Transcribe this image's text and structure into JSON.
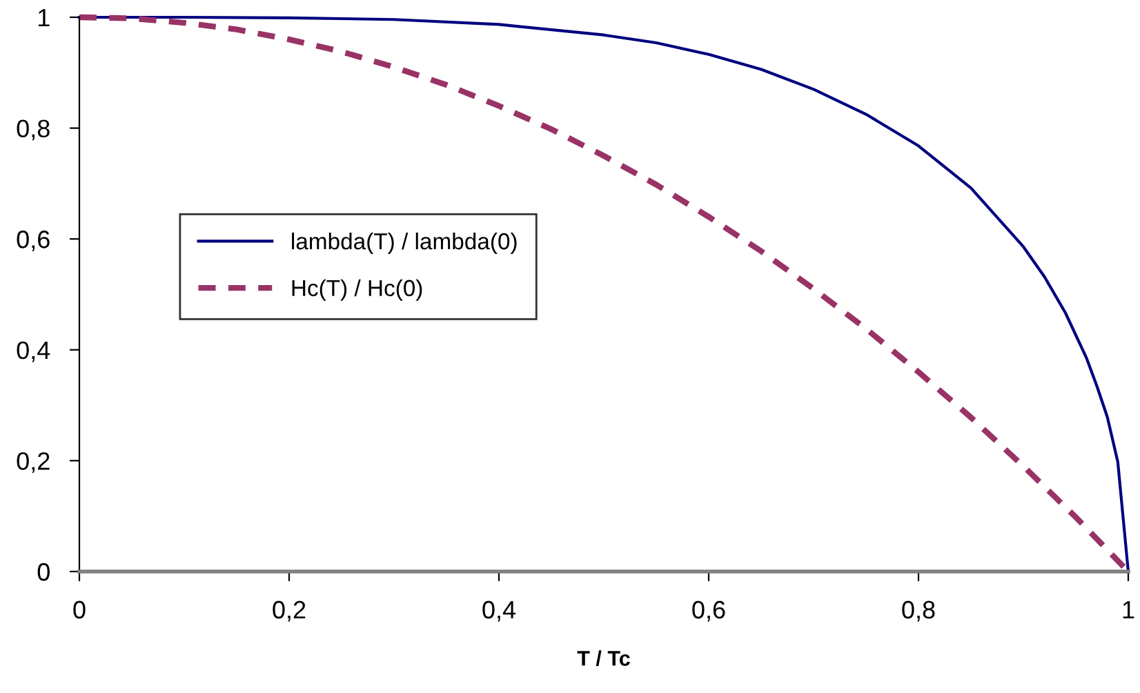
{
  "chart_data": {
    "type": "line",
    "xlabel": "T / Tc",
    "xlim": [
      0,
      1
    ],
    "ylim": [
      0,
      1
    ],
    "xticks": [
      0,
      {
        "value": 0.2,
        "label": "0,2"
      },
      {
        "value": 0.4,
        "label": "0,4"
      },
      {
        "value": 0.6,
        "label": "0,6"
      },
      {
        "value": 0.8,
        "label": "0,8"
      },
      1
    ],
    "yticks": [
      0,
      {
        "value": 0.2,
        "label": "0,2"
      },
      {
        "value": 0.4,
        "label": "0,4"
      },
      {
        "value": 0.6,
        "label": "0,6"
      },
      {
        "value": 0.8,
        "label": "0,8"
      },
      1
    ],
    "grid": false,
    "legend": "center left",
    "marker": "none",
    "series": [
      {
        "name": "lambda(T) / lambda(0)",
        "color": "#000080",
        "line_style": "solid",
        "x": [
          0,
          0.1,
          0.2,
          0.3,
          0.4,
          0.5,
          0.55,
          0.6,
          0.65,
          0.7,
          0.75,
          0.8,
          0.85,
          0.9,
          0.92,
          0.94,
          0.96,
          0.97,
          0.98,
          0.99,
          1
        ],
        "values": [
          1,
          1,
          0.999,
          0.996,
          0.987,
          0.968,
          0.954,
          0.933,
          0.906,
          0.87,
          0.825,
          0.768,
          0.692,
          0.586,
          0.532,
          0.467,
          0.386,
          0.335,
          0.279,
          0.198,
          0
        ]
      },
      {
        "name": "Hc(T) / Hc(0)",
        "color": "#993366",
        "line_style": "dashed",
        "x": [
          0,
          0.05,
          0.1,
          0.15,
          0.2,
          0.25,
          0.3,
          0.35,
          0.4,
          0.45,
          0.5,
          0.55,
          0.6,
          0.65,
          0.7,
          0.75,
          0.8,
          0.85,
          0.9,
          0.95,
          1
        ],
        "values": [
          1,
          0.998,
          0.99,
          0.978,
          0.96,
          0.938,
          0.91,
          0.878,
          0.84,
          0.798,
          0.75,
          0.698,
          0.64,
          0.578,
          0.51,
          0.438,
          0.36,
          0.278,
          0.19,
          0.098,
          0
        ]
      }
    ]
  }
}
